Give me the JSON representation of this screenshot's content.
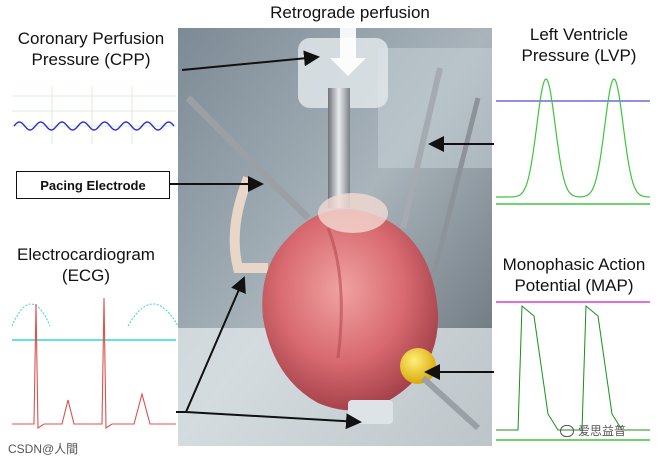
{
  "labels": {
    "top": "Retrograde perfusion",
    "cpp_line1": "Coronary Perfusion",
    "cpp_line2": "Pressure (CPP)",
    "pacing": "Pacing Electrode",
    "ecg_line1": "Electrocardiogram",
    "ecg_line2": "(ECG)",
    "lvp_line1": "Left Ventricle",
    "lvp_line2": "Pressure (LVP)",
    "map_line1": "Monophasic Action",
    "map_line2": "Potential (MAP)"
  },
  "watermarks": {
    "left": "CSDN@人間",
    "right": "爱思益普"
  },
  "colors": {
    "cpp_trace": "#2b2fc9",
    "lvp_baseline": "#6b6bd6",
    "lvp_trace": "#3ec43e",
    "ecg_trace": "#d9534f",
    "ecg_cyan": "#35d6d6",
    "map_baseline": "#d63fd6",
    "map_trace": "#1a8f1a",
    "grid": "#cfe7cf"
  }
}
